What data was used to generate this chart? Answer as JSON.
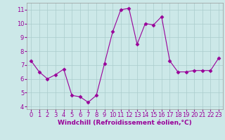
{
  "x": [
    0,
    1,
    2,
    3,
    4,
    5,
    6,
    7,
    8,
    9,
    10,
    11,
    12,
    13,
    14,
    15,
    16,
    17,
    18,
    19,
    20,
    21,
    22,
    23
  ],
  "y": [
    7.3,
    6.5,
    6.0,
    6.3,
    6.7,
    4.8,
    4.7,
    4.3,
    4.8,
    7.1,
    9.4,
    11.0,
    11.1,
    8.5,
    10.0,
    9.9,
    10.5,
    7.3,
    6.5,
    6.5,
    6.6,
    6.6,
    6.6,
    7.5
  ],
  "line_color": "#990099",
  "marker": "D",
  "marker_size": 2.5,
  "bg_color": "#cce8e8",
  "grid_color": "#aacccc",
  "xlabel": "Windchill (Refroidissement éolien,°C)",
  "xlabel_color": "#990099",
  "xlabel_fontsize": 6.5,
  "tick_color": "#990099",
  "tick_fontsize": 6.0,
  "ylim": [
    3.8,
    11.5
  ],
  "yticks": [
    4,
    5,
    6,
    7,
    8,
    9,
    10,
    11
  ],
  "xlim": [
    -0.5,
    23.5
  ],
  "xticks": [
    0,
    1,
    2,
    3,
    4,
    5,
    6,
    7,
    8,
    9,
    10,
    11,
    12,
    13,
    14,
    15,
    16,
    17,
    18,
    19,
    20,
    21,
    22,
    23
  ],
  "xticklabels": [
    "0",
    "1",
    "2",
    "3",
    "4",
    "5",
    "6",
    "7",
    "8",
    "9",
    "10",
    "11",
    "12",
    "13",
    "14",
    "15",
    "16",
    "17",
    "18",
    "19",
    "20",
    "21",
    "22",
    "23"
  ],
  "xlabel_bg": "#9900aa",
  "line_width": 0.8
}
